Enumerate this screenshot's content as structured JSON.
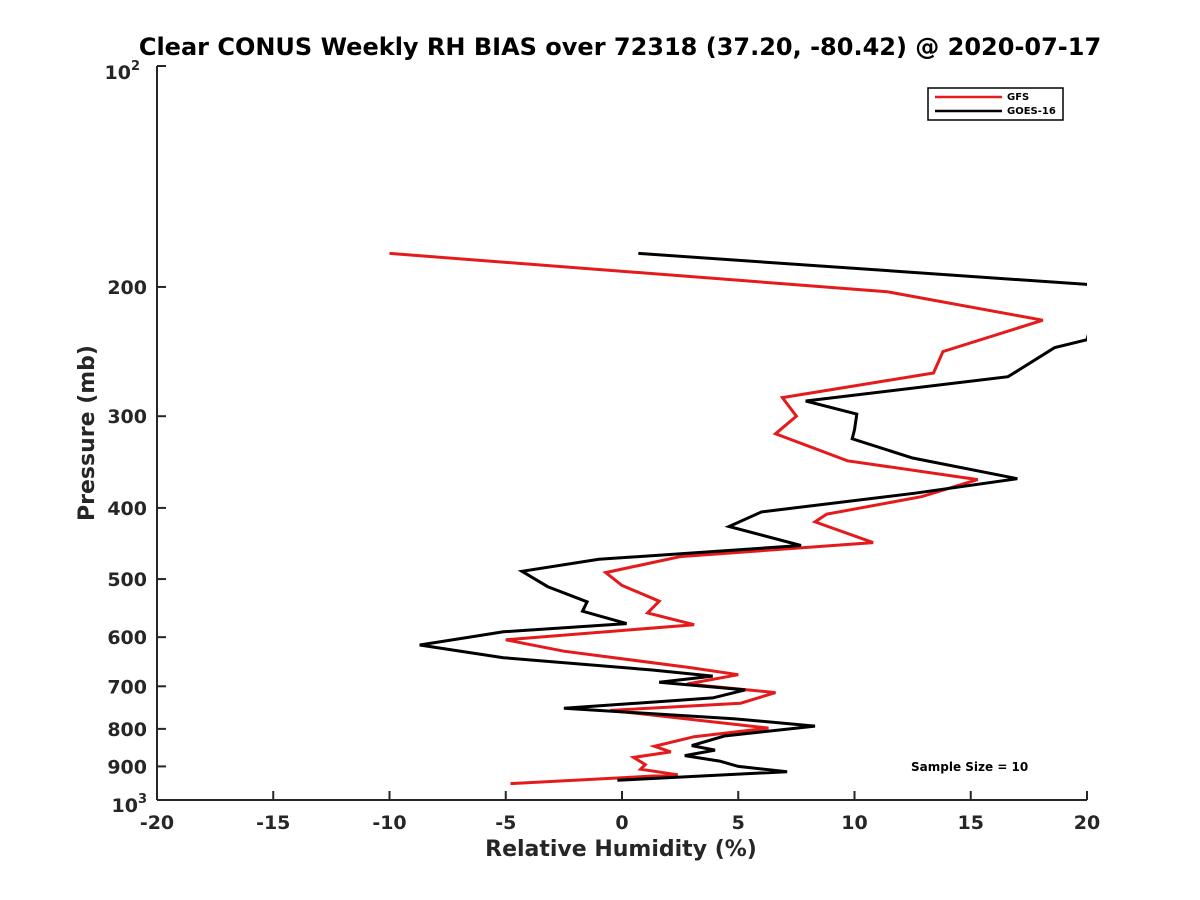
{
  "chart_data": {
    "type": "line",
    "title": "Clear CONUS Weekly RH BIAS over 72318 (37.20, -80.42) @ 2020-07-17",
    "xlabel": "Relative Humidity (%)",
    "ylabel": "Pressure (mb)",
    "xlim": [
      -20,
      20
    ],
    "ylim": [
      100,
      1000
    ],
    "y_scale": "log",
    "y_reversed": true,
    "grid": false,
    "legend_position": "top-right",
    "x_ticks": [
      "-20",
      "-15",
      "-10",
      "-5",
      "0",
      "5",
      "10",
      "15",
      "20"
    ],
    "y_ticks": [
      "200",
      "300",
      "400",
      "500",
      "600",
      "700",
      "800",
      "900"
    ],
    "y_end_ticks": {
      "top": {
        "base": "10",
        "exp": "2"
      },
      "bottom": {
        "base": "10",
        "exp": "3"
      }
    },
    "annotation": "Sample Size = 10",
    "series": [
      {
        "name": "GFS",
        "color": "#e41a1c",
        "points": [
          [
            -10.0,
            180
          ],
          [
            11.4,
            203
          ],
          [
            18.1,
            222
          ],
          [
            13.8,
            245
          ],
          [
            13.4,
            262
          ],
          [
            6.9,
            283
          ],
          [
            7.5,
            300
          ],
          [
            6.6,
            317
          ],
          [
            9.7,
            345
          ],
          [
            15.3,
            366
          ],
          [
            12.9,
            386
          ],
          [
            8.8,
            408
          ],
          [
            8.3,
            418
          ],
          [
            10.8,
            446
          ],
          [
            2.5,
            466
          ],
          [
            -0.7,
            490
          ],
          [
            0.0,
            510
          ],
          [
            1.6,
            536
          ],
          [
            1.1,
            556
          ],
          [
            3.1,
            577
          ],
          [
            -5.0,
            605
          ],
          [
            -2.5,
            627
          ],
          [
            2.9,
            660
          ],
          [
            5.0,
            675
          ],
          [
            2.8,
            695
          ],
          [
            6.6,
            714
          ],
          [
            5.1,
            738
          ],
          [
            -0.5,
            755
          ],
          [
            6.3,
            798
          ],
          [
            3.1,
            820
          ],
          [
            1.4,
            845
          ],
          [
            2.1,
            860
          ],
          [
            0.5,
            875
          ],
          [
            1.0,
            895
          ],
          [
            0.8,
            908
          ],
          [
            2.4,
            924
          ],
          [
            -4.8,
            950
          ]
        ]
      },
      {
        "name": "GOES-16",
        "color": "#000000",
        "points": [
          [
            0.7,
            180
          ],
          [
            20.6,
            199
          ],
          [
            20.0,
            236
          ],
          [
            18.6,
            242
          ],
          [
            16.6,
            265
          ],
          [
            7.9,
            286
          ],
          [
            10.1,
            298
          ],
          [
            10.0,
            313
          ],
          [
            9.9,
            322
          ],
          [
            12.5,
            342
          ],
          [
            17.0,
            365
          ],
          [
            12.6,
            382
          ],
          [
            6.0,
            405
          ],
          [
            4.6,
            424
          ],
          [
            7.7,
            450
          ],
          [
            -1.0,
            470
          ],
          [
            -4.3,
            488
          ],
          [
            -3.2,
            512
          ],
          [
            -1.5,
            537
          ],
          [
            -1.7,
            553
          ],
          [
            0.2,
            575
          ],
          [
            -5.1,
            590
          ],
          [
            -8.7,
            615
          ],
          [
            -5.1,
            640
          ],
          [
            1.3,
            665
          ],
          [
            3.9,
            678
          ],
          [
            1.6,
            691
          ],
          [
            5.3,
            708
          ],
          [
            3.9,
            726
          ],
          [
            -2.5,
            750
          ],
          [
            4.8,
            775
          ],
          [
            8.3,
            793
          ],
          [
            4.4,
            818
          ],
          [
            3.0,
            843
          ],
          [
            4.0,
            855
          ],
          [
            2.7,
            870
          ],
          [
            4.2,
            885
          ],
          [
            5.0,
            900
          ],
          [
            7.1,
            915
          ],
          [
            -0.2,
            940
          ]
        ]
      }
    ]
  }
}
